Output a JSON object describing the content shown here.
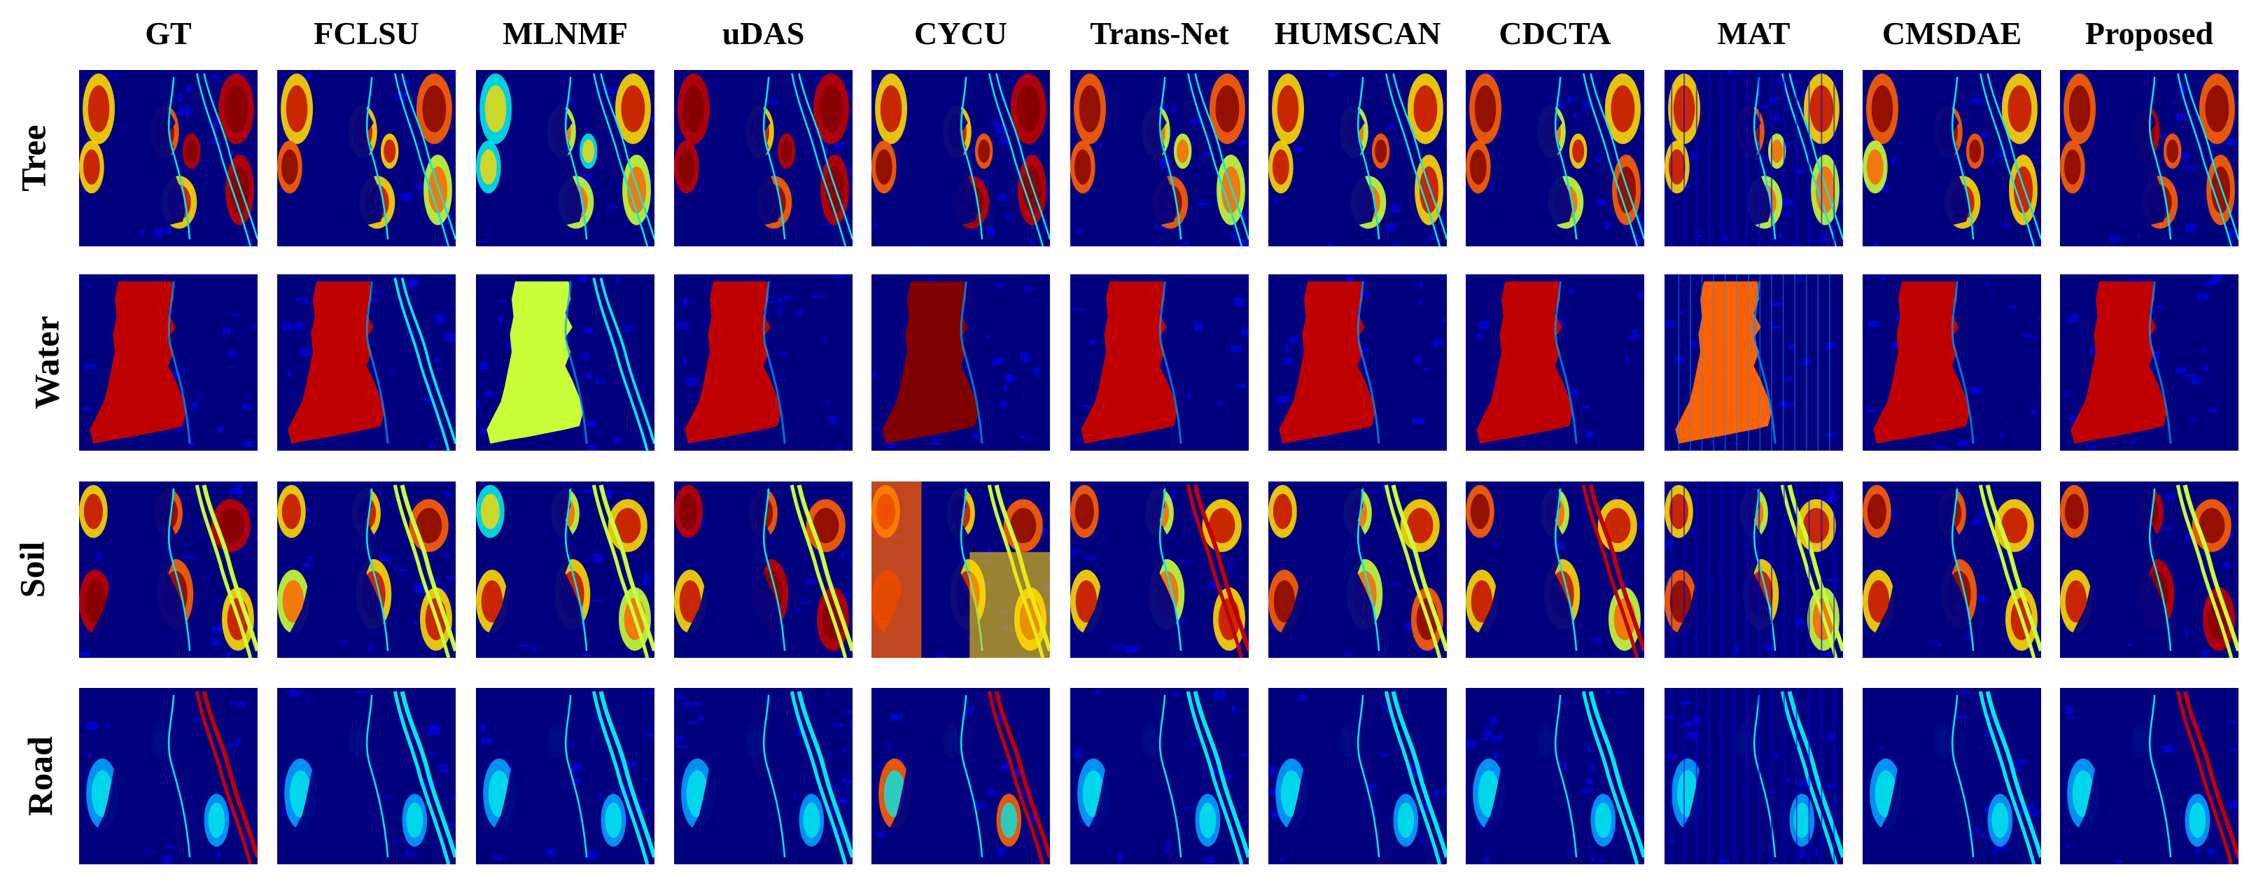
{
  "figure": {
    "columns": [
      "GT",
      "FCLSU",
      "MLNMF",
      "uDAS",
      "CYCU",
      "Trans-Net",
      "HUMSCAN",
      "CDCTA",
      "MAT",
      "CMSDAE",
      "Proposed"
    ],
    "rows": [
      "Tree",
      "Water",
      "Soil",
      "Road"
    ],
    "colormap": "jet",
    "colors": {
      "background_dark": "#00007f",
      "low": "#0000e0",
      "mid_low": "#00a0ff",
      "mid": "#00e8e8",
      "mid_high": "#c8ff38",
      "high": "#ffd800",
      "higher": "#ff6000",
      "max": "#c00000",
      "darkest": "#800000"
    }
  }
}
